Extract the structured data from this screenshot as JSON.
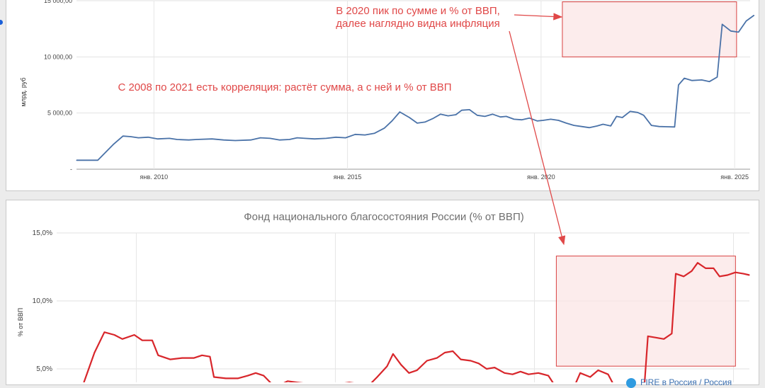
{
  "colors": {
    "top_line": "#4a72a8",
    "bottom_line": "#d8262b",
    "annotation": "#e04848",
    "highlight_fill": "#fbe6e6",
    "highlight_stroke": "#d84040",
    "legend_dot": "#2f9be0"
  },
  "annotations": {
    "peak_line1": "В 2020 пик по сумме и % от ВВП,",
    "peak_line2": "далее наглядно видна инфляция",
    "correlation": "С 2008 по 2021 есть корреляция: растёт сумма, а с ней и % от ВВП"
  },
  "legend": {
    "text": "FIRE в Россия / Россия",
    "icon": "circle-logo-icon"
  },
  "chart_data": [
    {
      "type": "line",
      "title": "",
      "ylabel": "млрд. руб",
      "ylim": [
        0,
        15000
      ],
      "yticks": [
        {
          "value": 0,
          "label": "-"
        },
        {
          "value": 5000,
          "label": "5 000,00"
        },
        {
          "value": 10000,
          "label": "10 000,00"
        },
        {
          "value": 15000,
          "label": "15 000,00"
        }
      ],
      "xlim": [
        2008.0,
        2025.4
      ],
      "xticks": [
        {
          "value": 2010,
          "label": "янв. 2010"
        },
        {
          "value": 2015,
          "label": "янв. 2015"
        },
        {
          "value": 2020,
          "label": "янв. 2020"
        },
        {
          "value": 2025,
          "label": "янв. 2025"
        }
      ],
      "grid": true,
      "highlight": {
        "x": [
          2020.55,
          2025.05
        ],
        "y": [
          10000,
          14900
        ]
      },
      "series": [
        {
          "values": [
            [
              2008.0,
              800
            ],
            [
              2008.25,
              800
            ],
            [
              2008.55,
              800
            ],
            [
              2008.95,
              2200
            ],
            [
              2009.2,
              2950
            ],
            [
              2009.4,
              2900
            ],
            [
              2009.6,
              2800
            ],
            [
              2009.85,
              2850
            ],
            [
              2010.1,
              2700
            ],
            [
              2010.4,
              2750
            ],
            [
              2010.6,
              2650
            ],
            [
              2010.9,
              2600
            ],
            [
              2011.1,
              2650
            ],
            [
              2011.5,
              2700
            ],
            [
              2011.8,
              2600
            ],
            [
              2012.1,
              2550
            ],
            [
              2012.5,
              2600
            ],
            [
              2012.75,
              2800
            ],
            [
              2013.0,
              2750
            ],
            [
              2013.25,
              2600
            ],
            [
              2013.5,
              2650
            ],
            [
              2013.7,
              2800
            ],
            [
              2013.9,
              2750
            ],
            [
              2014.15,
              2700
            ],
            [
              2014.45,
              2750
            ],
            [
              2014.7,
              2850
            ],
            [
              2014.95,
              2800
            ],
            [
              2015.2,
              3100
            ],
            [
              2015.45,
              3050
            ],
            [
              2015.7,
              3200
            ],
            [
              2015.95,
              3650
            ],
            [
              2016.15,
              4300
            ],
            [
              2016.35,
              5100
            ],
            [
              2016.6,
              4600
            ],
            [
              2016.8,
              4100
            ],
            [
              2017.0,
              4200
            ],
            [
              2017.2,
              4500
            ],
            [
              2017.4,
              4900
            ],
            [
              2017.6,
              4750
            ],
            [
              2017.8,
              4850
            ],
            [
              2017.95,
              5250
            ],
            [
              2018.15,
              5300
            ],
            [
              2018.35,
              4800
            ],
            [
              2018.55,
              4700
            ],
            [
              2018.75,
              4900
            ],
            [
              2018.95,
              4650
            ],
            [
              2019.1,
              4700
            ],
            [
              2019.3,
              4450
            ],
            [
              2019.5,
              4400
            ],
            [
              2019.7,
              4550
            ],
            [
              2019.9,
              4300
            ],
            [
              2020.05,
              4350
            ],
            [
              2020.25,
              4450
            ],
            [
              2020.45,
              4350
            ],
            [
              2020.65,
              4100
            ],
            [
              2020.85,
              3900
            ],
            [
              2021.05,
              3800
            ],
            [
              2021.25,
              3700
            ],
            [
              2021.45,
              3850
            ],
            [
              2021.6,
              4000
            ],
            [
              2021.8,
              3850
            ],
            [
              2021.95,
              4700
            ],
            [
              2022.1,
              4600
            ],
            [
              2022.3,
              5150
            ],
            [
              2022.5,
              5050
            ],
            [
              2022.65,
              4800
            ],
            [
              2022.85,
              3900
            ],
            [
              2023.05,
              3800
            ],
            [
              2023.25,
              3780
            ],
            [
              2023.45,
              3760
            ],
            [
              2023.55,
              7500
            ],
            [
              2023.7,
              8100
            ],
            [
              2023.9,
              7900
            ],
            [
              2024.15,
              7950
            ],
            [
              2024.35,
              7800
            ],
            [
              2024.55,
              8200
            ],
            [
              2024.68,
              12900
            ],
            [
              2024.9,
              12300
            ],
            [
              2025.1,
              12200
            ],
            [
              2025.3,
              13200
            ],
            [
              2025.5,
              13700
            ]
          ]
        }
      ]
    },
    {
      "type": "line",
      "title": "Фонд национального благосостояния России (% от ВВП)",
      "ylabel": "% от ВВП",
      "ylim": [
        2.5,
        15
      ],
      "yticks": [
        {
          "value": 5,
          "label": "5,0%"
        },
        {
          "value": 10,
          "label": "10,0%"
        },
        {
          "value": 15,
          "label": "15,0%"
        }
      ],
      "xlim": [
        2008.0,
        2025.4
      ],
      "grid": true,
      "highlight": {
        "x": [
          2020.55,
          2025.05
        ],
        "y": [
          5.2,
          13.3
        ]
      },
      "series": [
        {
          "values": [
            [
              2008.0,
              2.9
            ],
            [
              2008.25,
              2.9
            ],
            [
              2008.55,
              2.9
            ],
            [
              2008.95,
              6.2
            ],
            [
              2009.2,
              7.7
            ],
            [
              2009.45,
              7.5
            ],
            [
              2009.65,
              7.2
            ],
            [
              2009.95,
              7.5
            ],
            [
              2010.15,
              7.1
            ],
            [
              2010.4,
              7.1
            ],
            [
              2010.55,
              6.0
            ],
            [
              2010.85,
              5.7
            ],
            [
              2011.15,
              5.8
            ],
            [
              2011.45,
              5.8
            ],
            [
              2011.65,
              6.0
            ],
            [
              2011.85,
              5.9
            ],
            [
              2011.95,
              4.4
            ],
            [
              2012.25,
              4.3
            ],
            [
              2012.55,
              4.3
            ],
            [
              2012.8,
              4.5
            ],
            [
              2013.0,
              4.7
            ],
            [
              2013.2,
              4.5
            ],
            [
              2013.4,
              3.9
            ],
            [
              2013.6,
              3.8
            ],
            [
              2013.8,
              4.1
            ],
            [
              2014.05,
              4.0
            ],
            [
              2014.35,
              3.9
            ],
            [
              2014.6,
              3.7
            ],
            [
              2014.85,
              3.8
            ],
            [
              2015.1,
              3.9
            ],
            [
              2015.35,
              4.0
            ],
            [
              2015.6,
              3.9
            ],
            [
              2015.85,
              3.8
            ],
            [
              2016.05,
              4.4
            ],
            [
              2016.3,
              5.2
            ],
            [
              2016.45,
              6.1
            ],
            [
              2016.65,
              5.3
            ],
            [
              2016.85,
              4.7
            ],
            [
              2017.05,
              4.9
            ],
            [
              2017.3,
              5.6
            ],
            [
              2017.55,
              5.8
            ],
            [
              2017.75,
              6.2
            ],
            [
              2017.95,
              6.3
            ],
            [
              2018.15,
              5.7
            ],
            [
              2018.4,
              5.6
            ],
            [
              2018.6,
              5.4
            ],
            [
              2018.8,
              5.0
            ],
            [
              2019.0,
              5.1
            ],
            [
              2019.25,
              4.7
            ],
            [
              2019.45,
              4.6
            ],
            [
              2019.65,
              4.8
            ],
            [
              2019.85,
              4.6
            ],
            [
              2020.1,
              4.7
            ],
            [
              2020.35,
              4.5
            ],
            [
              2020.55,
              3.6
            ],
            [
              2020.8,
              3.6
            ],
            [
              2021.0,
              3.7
            ],
            [
              2021.15,
              4.7
            ],
            [
              2021.4,
              4.4
            ],
            [
              2021.6,
              4.9
            ],
            [
              2021.85,
              4.6
            ],
            [
              2022.05,
              3.5
            ],
            [
              2022.35,
              3.4
            ],
            [
              2022.6,
              3.4
            ],
            [
              2022.75,
              3.3
            ],
            [
              2022.85,
              7.4
            ],
            [
              2023.05,
              7.3
            ],
            [
              2023.25,
              7.2
            ],
            [
              2023.45,
              7.6
            ],
            [
              2023.55,
              12.0
            ],
            [
              2023.75,
              11.8
            ],
            [
              2023.95,
              12.2
            ],
            [
              2024.1,
              12.8
            ],
            [
              2024.3,
              12.4
            ],
            [
              2024.5,
              12.4
            ],
            [
              2024.65,
              11.8
            ],
            [
              2024.85,
              11.9
            ],
            [
              2025.05,
              12.1
            ],
            [
              2025.25,
              12.0
            ],
            [
              2025.4,
              11.9
            ]
          ]
        }
      ]
    }
  ]
}
